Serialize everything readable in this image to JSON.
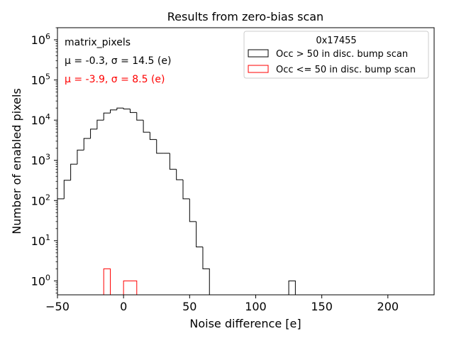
{
  "chart_data": {
    "type": "histogram",
    "title": "Results from zero-bias scan",
    "xlabel": "Noise difference [e]",
    "ylabel": "Number of enabled pixels",
    "xlim": [
      -50,
      235
    ],
    "ylim": [
      0.45,
      2000000
    ],
    "yscale": "log",
    "bin_width": 5,
    "grid": false,
    "xticks": [
      -50,
      0,
      50,
      100,
      150,
      200
    ],
    "xtick_labels": [
      "−50",
      "0",
      "50",
      "100",
      "150",
      "200"
    ],
    "ytick_mantissa": "10",
    "ytick_exponents": [
      "0",
      "1",
      "2",
      "3",
      "4",
      "5",
      "6"
    ],
    "ytick_values": [
      1,
      10,
      100,
      1000,
      10000,
      100000,
      1000000
    ],
    "annotations": {
      "label": "matrix_pixels",
      "stats_black": "μ = -0.3, σ = 14.5 (e)",
      "stats_red": "μ = -3.9, σ = 8.5 (e)"
    },
    "legend": {
      "title": "0x17455",
      "position": "top-right",
      "entries": [
        "Occ > 50 in disc. bump scan",
        "Occ <= 50 in disc. bump scan"
      ]
    },
    "series": [
      {
        "name": "Occ > 50 in disc. bump scan",
        "color": "#000000",
        "bins": [
          {
            "x0": -50,
            "x1": -45,
            "count": 110
          },
          {
            "x0": -45,
            "x1": -40,
            "count": 320
          },
          {
            "x0": -40,
            "x1": -35,
            "count": 800
          },
          {
            "x0": -35,
            "x1": -30,
            "count": 1800
          },
          {
            "x0": -30,
            "x1": -25,
            "count": 3500
          },
          {
            "x0": -25,
            "x1": -20,
            "count": 6000
          },
          {
            "x0": -20,
            "x1": -15,
            "count": 10000
          },
          {
            "x0": -15,
            "x1": -10,
            "count": 15000
          },
          {
            "x0": -10,
            "x1": -5,
            "count": 18000
          },
          {
            "x0": -5,
            "x1": 0,
            "count": 20000
          },
          {
            "x0": 0,
            "x1": 5,
            "count": 19000
          },
          {
            "x0": 5,
            "x1": 10,
            "count": 15500
          },
          {
            "x0": 10,
            "x1": 15,
            "count": 10000
          },
          {
            "x0": 15,
            "x1": 20,
            "count": 5000
          },
          {
            "x0": 20,
            "x1": 25,
            "count": 3300
          },
          {
            "x0": 25,
            "x1": 30,
            "count": 1500
          },
          {
            "x0": 30,
            "x1": 35,
            "count": 1500
          },
          {
            "x0": 35,
            "x1": 40,
            "count": 600
          },
          {
            "x0": 40,
            "x1": 45,
            "count": 330
          },
          {
            "x0": 45,
            "x1": 50,
            "count": 110
          },
          {
            "x0": 50,
            "x1": 55,
            "count": 30
          },
          {
            "x0": 55,
            "x1": 60,
            "count": 7
          },
          {
            "x0": 60,
            "x1": 65,
            "count": 2
          },
          {
            "x0": 125,
            "x1": 130,
            "count": 1
          }
        ]
      },
      {
        "name": "Occ <= 50 in disc. bump scan",
        "color": "#ff0000",
        "bins": [
          {
            "x0": -15,
            "x1": -10,
            "count": 2
          },
          {
            "x0": 0,
            "x1": 5,
            "count": 1
          },
          {
            "x0": 5,
            "x1": 10,
            "count": 1
          }
        ]
      }
    ]
  }
}
